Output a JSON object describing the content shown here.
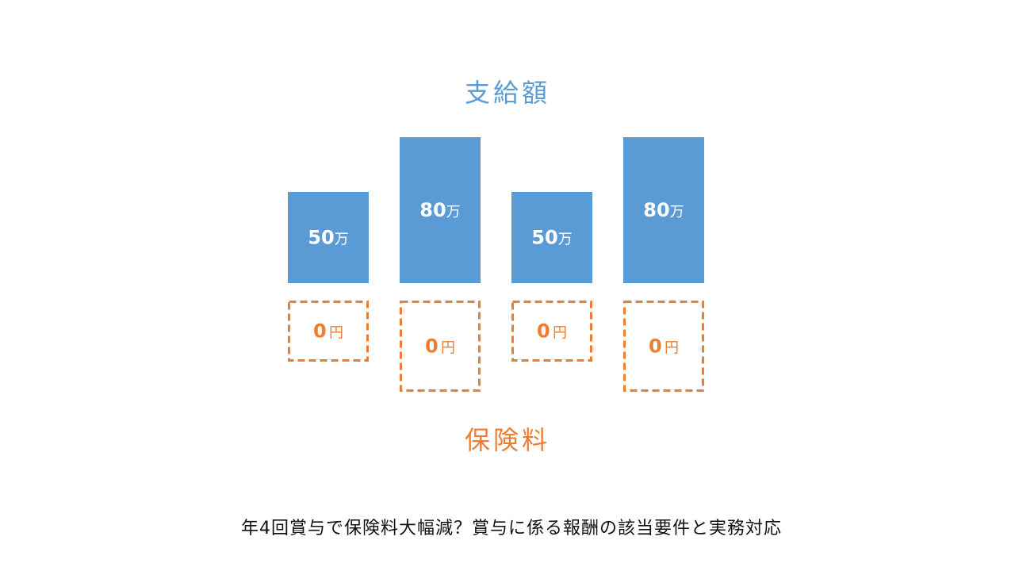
{
  "chart_data": {
    "type": "bar",
    "title": "支給額",
    "bottom_title": "保険料",
    "series": [
      {
        "values": [
          50,
          80,
          50,
          80
        ],
        "labels": [
          "50",
          "80",
          "50",
          "80"
        ],
        "unit": "万",
        "color": "#5B9BD5"
      },
      {
        "values": [
          0,
          0,
          0,
          0
        ],
        "labels": [
          "0",
          "0",
          "0",
          "0"
        ],
        "unit": "円",
        "color": "#ED7D31"
      }
    ]
  },
  "caption": "年4回賞与で保険料大幅減？賞与に係る報酬の該当要件と実務対応"
}
